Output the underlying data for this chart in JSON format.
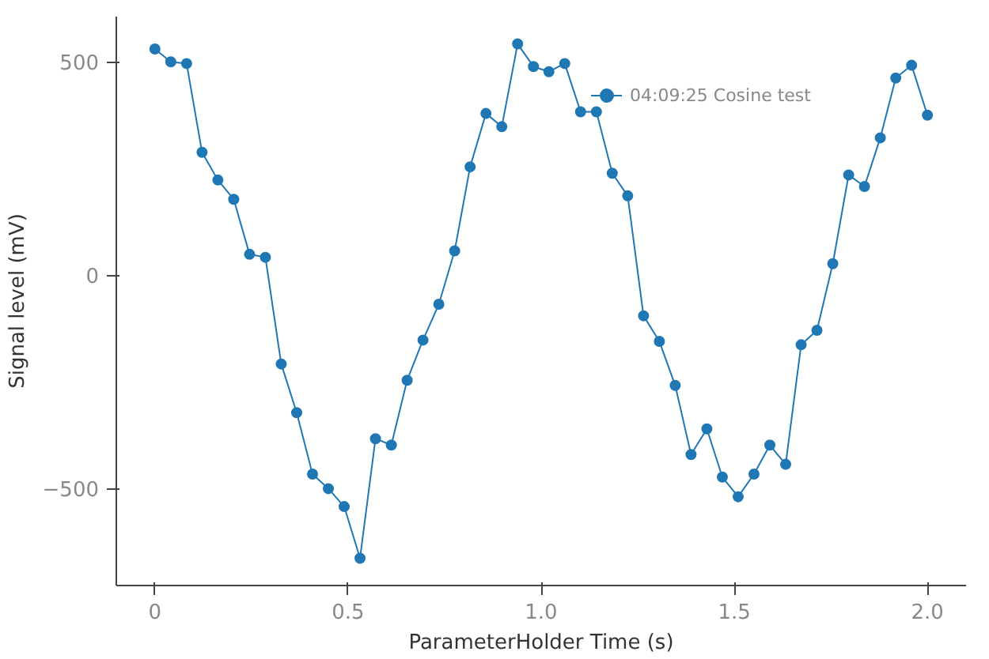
{
  "chart_data": {
    "type": "line",
    "xlabel": "ParameterHolder Time (s)",
    "ylabel": "Signal level (mV)",
    "xlim": [
      -0.1,
      2.1
    ],
    "xticks": [
      {
        "value": 0,
        "label": "0"
      },
      {
        "value": 0.5,
        "label": "0.5"
      },
      {
        "value": 1,
        "label": "1.0"
      },
      {
        "value": 1.5,
        "label": "1.5"
      },
      {
        "value": 2,
        "label": "2.0"
      }
    ],
    "ylim": [
      -727,
      606
    ],
    "yticks": [
      -500,
      0,
      500
    ],
    "grid": false,
    "legend": "top right",
    "marker": "circle",
    "line_style": "solid",
    "series": [
      {
        "name": "04:09:25 Cosine test",
        "color": "#1f77b4",
        "x": [
          0,
          0.041,
          0.082,
          0.122,
          0.163,
          0.204,
          0.245,
          0.286,
          0.327,
          0.367,
          0.408,
          0.449,
          0.49,
          0.531,
          0.571,
          0.612,
          0.653,
          0.694,
          0.735,
          0.776,
          0.816,
          0.857,
          0.898,
          0.939,
          0.98,
          1.02,
          1.061,
          1.102,
          1.143,
          1.184,
          1.224,
          1.265,
          1.306,
          1.347,
          1.388,
          1.429,
          1.469,
          1.51,
          1.551,
          1.592,
          1.633,
          1.673,
          1.714,
          1.755,
          1.796,
          1.837,
          1.878,
          1.918,
          1.959,
          2
        ],
        "values": [
          530,
          500,
          496,
          288,
          223,
          178,
          49,
          42,
          -208,
          -322,
          -466,
          -500,
          -542,
          -663,
          -383,
          -398,
          -246,
          -152,
          -68,
          57,
          254,
          379,
          348,
          542,
          489,
          477,
          496,
          383,
          383,
          239,
          186,
          -95,
          -155,
          -258,
          -420,
          -360,
          -473,
          -519,
          -466,
          -398,
          -443,
          -163,
          -129,
          27,
          235,
          208,
          322,
          462,
          492,
          375
        ]
      }
    ]
  }
}
